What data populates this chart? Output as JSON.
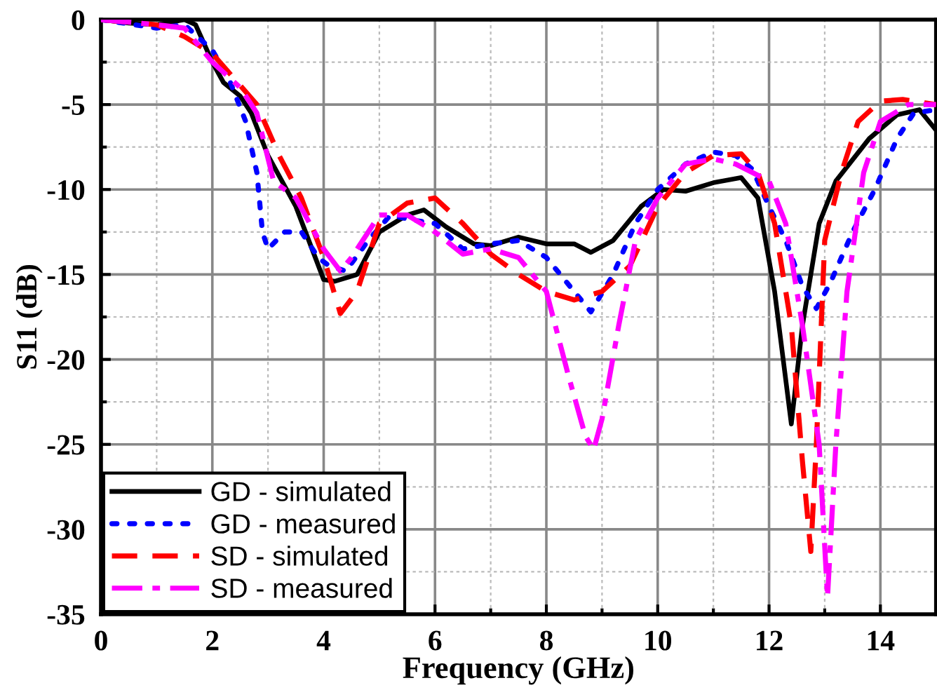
{
  "chart_data": {
    "type": "line",
    "xlabel": "Frequency (GHz)",
    "ylabel": "S11 (dB)",
    "xlim": [
      0,
      15
    ],
    "ylim": [
      -35,
      0
    ],
    "xticks": [
      0,
      2,
      4,
      6,
      8,
      10,
      12,
      14
    ],
    "yticks": [
      -35,
      -30,
      -25,
      -20,
      -15,
      -10,
      -5,
      0
    ],
    "grid": true,
    "legend": "bottom left",
    "marker": "none",
    "series": [
      {
        "name": "GD - simulated",
        "color": "#000000",
        "line_style": "solid",
        "x": [
          0,
          0.5,
          1,
          1.5,
          1.7,
          2,
          2.2,
          2.5,
          2.7,
          3,
          3.5,
          4,
          4.2,
          4.6,
          5,
          5.5,
          5.8,
          6.2,
          6.7,
          7,
          7.5,
          8,
          8.5,
          8.8,
          9.2,
          9.7,
          10.1,
          10.5,
          11,
          11.5,
          11.8,
          12.1,
          12.4,
          12.6,
          12.9,
          13.2,
          13.8,
          14.3,
          14.7,
          15
        ],
        "values": [
          0,
          -0.2,
          -0.3,
          0,
          -0.3,
          -2.5,
          -3.7,
          -4.5,
          -5.5,
          -8,
          -11,
          -15.3,
          -15.4,
          -15,
          -12.5,
          -11.5,
          -11.2,
          -12.2,
          -13.2,
          -13.3,
          -12.8,
          -13.2,
          -13.2,
          -13.7,
          -13,
          -11,
          -10,
          -10.1,
          -9.6,
          -9.3,
          -10.5,
          -16,
          -23.8,
          -18,
          -12,
          -9.5,
          -7,
          -5.6,
          -5.3,
          -6.5
        ]
      },
      {
        "name": "GD - measured",
        "color": "#0000ff",
        "line_style": "dotted",
        "x": [
          0,
          1,
          1.5,
          2,
          2.3,
          2.6,
          2.8,
          2.9,
          3,
          3.3,
          3.6,
          3.9,
          4.1,
          4.4,
          4.8,
          5.2,
          5.6,
          6,
          6.5,
          7,
          7.5,
          8,
          8.5,
          8.8,
          9.2,
          9.6,
          10,
          10.5,
          11,
          11.4,
          11.7,
          12,
          12.3,
          12.6,
          12.85,
          13.1,
          13.5,
          13.9,
          14.3,
          14.6,
          15
        ],
        "values": [
          0,
          -0.5,
          -0.3,
          -1.8,
          -3.5,
          -6,
          -9,
          -12.5,
          -13.5,
          -12.5,
          -12.5,
          -14,
          -14.5,
          -14.8,
          -13,
          -11.5,
          -11.8,
          -12,
          -13.5,
          -13.2,
          -13,
          -14,
          -16,
          -17.2,
          -15,
          -12,
          -10,
          -8.5,
          -7.8,
          -8,
          -8.8,
          -11,
          -13,
          -15.7,
          -17,
          -15.5,
          -12.5,
          -10,
          -7,
          -5.5,
          -5.3
        ]
      },
      {
        "name": "SD - simulated",
        "color": "#ff0000",
        "line_style": "dashed",
        "x": [
          0,
          1,
          1.5,
          2,
          2.4,
          2.8,
          3.2,
          3.6,
          4,
          4.3,
          4.6,
          5,
          5.5,
          6,
          6.5,
          7,
          7.5,
          8,
          8.5,
          9,
          9.5,
          10,
          10.5,
          11,
          11.5,
          11.8,
          12.1,
          12.4,
          12.6,
          12.75,
          12.85,
          13,
          13.3,
          13.6,
          14,
          14.4,
          15
        ],
        "values": [
          0,
          -0.3,
          -1,
          -2,
          -3.5,
          -5,
          -8,
          -10.5,
          -14,
          -17.3,
          -16,
          -12,
          -10.8,
          -10.5,
          -12,
          -13.8,
          -15,
          -16,
          -16.5,
          -16,
          -14.5,
          -11,
          -9,
          -8,
          -7.9,
          -9,
          -12,
          -18,
          -26,
          -31.3,
          -25,
          -13,
          -9,
          -6,
          -4.8,
          -4.7,
          -5
        ]
      },
      {
        "name": "SD - measured",
        "color": "#ff00ff",
        "line_style": "dashdot",
        "x": [
          0,
          1,
          1.5,
          2,
          2.5,
          2.8,
          3.1,
          3.5,
          4,
          4.3,
          4.5,
          5,
          5.5,
          6,
          6.5,
          7,
          7.5,
          8,
          8.4,
          8.7,
          8.85,
          9,
          9.3,
          9.6,
          10,
          10.5,
          11,
          11.4,
          11.7,
          12,
          12.3,
          12.6,
          12.9,
          13.05,
          13.2,
          13.4,
          13.7,
          14,
          14.5,
          15
        ],
        "values": [
          0,
          -0.3,
          -0.5,
          -2.5,
          -4,
          -5.5,
          -9.5,
          -10.5,
          -13.5,
          -14.8,
          -14,
          -11.5,
          -11.5,
          -12.5,
          -13.8,
          -13.5,
          -14,
          -16,
          -21,
          -24.5,
          -25.3,
          -23.5,
          -18,
          -13,
          -10.5,
          -8.5,
          -8.2,
          -8.5,
          -9,
          -9.5,
          -12,
          -18,
          -25,
          -34,
          -25,
          -16,
          -9,
          -6,
          -5,
          -5
        ]
      }
    ]
  }
}
